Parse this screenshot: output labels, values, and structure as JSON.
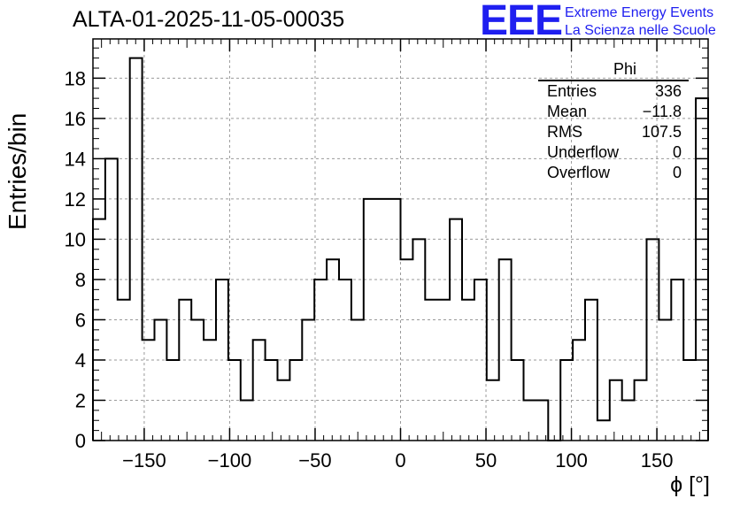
{
  "title": "ALTA-01-2025-11-05-00035",
  "logo": {
    "mark": "EEE",
    "line1": "Extreme Energy Events",
    "line2": "La Scienza nelle Scuole",
    "color": "#1f1ff0"
  },
  "stats_box": {
    "name": "Phi",
    "rows": [
      {
        "label": "Entries",
        "value": "336"
      },
      {
        "label": "Mean",
        "value": "−11.8"
      },
      {
        "label": "RMS",
        "value": "107.5"
      },
      {
        "label": "Underflow",
        "value": "0"
      },
      {
        "label": "Overflow",
        "value": "0"
      }
    ]
  },
  "chart_data": {
    "type": "bar",
    "histogram": true,
    "xlabel": "ϕ [°]",
    "ylabel": "Entries/bin",
    "xlim": [
      -180,
      180
    ],
    "ylim": [
      0,
      19.95
    ],
    "bin_width": 7.2,
    "x_ticks": [
      -150,
      -100,
      -50,
      0,
      50,
      100,
      150
    ],
    "y_ticks": [
      0,
      2,
      4,
      6,
      8,
      10,
      12,
      14,
      16,
      18
    ],
    "grid": true,
    "values": [
      11,
      14,
      7,
      19,
      5,
      6,
      4,
      7,
      6,
      5,
      8,
      4,
      2,
      5,
      4,
      3,
      4,
      6,
      8,
      9,
      8,
      6,
      12,
      12,
      12,
      9,
      10,
      7,
      7,
      11,
      7,
      8,
      3,
      9,
      4,
      2,
      2,
      0,
      4,
      5,
      7,
      1,
      3,
      2,
      3,
      10,
      6,
      8,
      4,
      17
    ]
  }
}
